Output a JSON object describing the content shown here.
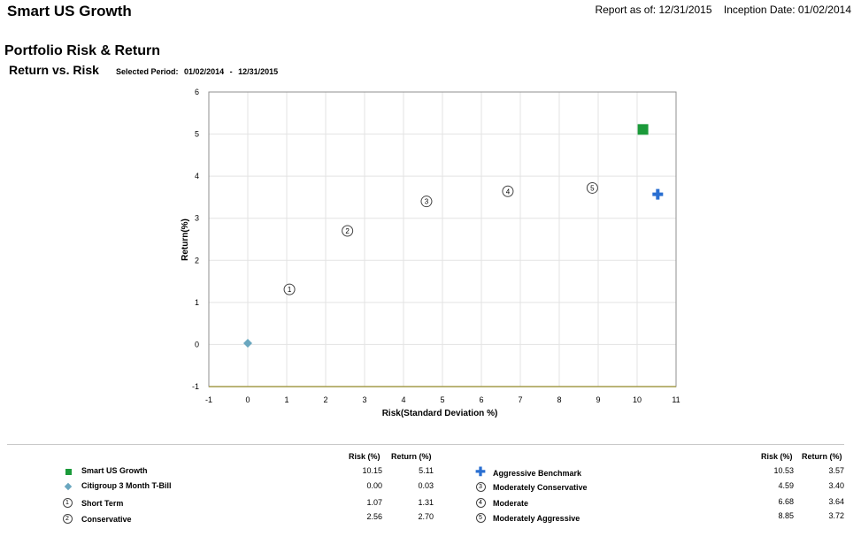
{
  "header": {
    "title": "Smart US Growth",
    "report_as_of": "Report as of: 12/31/2015",
    "inception_date": "Inception Date: 01/02/2014"
  },
  "section_title": "Portfolio Risk & Return",
  "chart_heading": "Return vs. Risk",
  "selected_period": {
    "label": "Selected Period:",
    "start": "01/02/2014",
    "separator": "-",
    "end": "12/31/2015"
  },
  "chart_data": {
    "type": "scatter",
    "xlabel": "Risk(Standard Deviation %)",
    "ylabel": "Return(%)",
    "xlim": [
      -1,
      11
    ],
    "ylim": [
      -1,
      6
    ],
    "xticks": [
      -1,
      0,
      1,
      2,
      3,
      4,
      5,
      6,
      7,
      8,
      9,
      10,
      11
    ],
    "yticks": [
      -1,
      0,
      1,
      2,
      3,
      4,
      5,
      6
    ],
    "grid": true,
    "series": [
      {
        "name": "Smart US Growth",
        "marker": "square",
        "color": "#1b9a3a",
        "x": 10.15,
        "y": 5.11
      },
      {
        "name": "Citigroup 3 Month T-Bill",
        "marker": "diamond",
        "color": "#6aa7bf",
        "x": 0.0,
        "y": 0.03
      },
      {
        "name": "Short Term",
        "marker": "circle-label",
        "label": "1",
        "color": "#444444",
        "x": 1.07,
        "y": 1.31
      },
      {
        "name": "Conservative",
        "marker": "circle-label",
        "label": "2",
        "color": "#444444",
        "x": 2.56,
        "y": 2.7
      },
      {
        "name": "Aggressive Benchmark",
        "marker": "plus",
        "color": "#2a6fd1",
        "x": 10.53,
        "y": 3.57
      },
      {
        "name": "Moderately Conservative",
        "marker": "circle-label",
        "label": "3",
        "color": "#444444",
        "x": 4.59,
        "y": 3.4
      },
      {
        "name": "Moderate",
        "marker": "circle-label",
        "label": "4",
        "color": "#444444",
        "x": 6.68,
        "y": 3.64
      },
      {
        "name": "Moderately Aggressive",
        "marker": "circle-label",
        "label": "5",
        "color": "#444444",
        "x": 8.85,
        "y": 3.72
      }
    ]
  },
  "legend_table": {
    "risk_header": "Risk (%)",
    "return_header": "Return (%)",
    "left": [
      {
        "name": "Smart US Growth",
        "marker": "square",
        "risk": "10.15",
        "return": "5.11"
      },
      {
        "name": "Citigroup 3 Month T-Bill",
        "marker": "diamond",
        "risk": "0.00",
        "return": "0.03"
      },
      {
        "name": "Short Term",
        "marker": "circle",
        "label": "1",
        "risk": "1.07",
        "return": "1.31"
      },
      {
        "name": "Conservative",
        "marker": "circle",
        "label": "2",
        "risk": "2.56",
        "return": "2.70"
      }
    ],
    "right": [
      {
        "name": "Aggressive Benchmark",
        "marker": "plus",
        "risk": "10.53",
        "return": "3.57"
      },
      {
        "name": "Moderately Conservative",
        "marker": "circle",
        "label": "3",
        "risk": "4.59",
        "return": "3.40"
      },
      {
        "name": "Moderate",
        "marker": "circle",
        "label": "4",
        "risk": "6.68",
        "return": "3.64"
      },
      {
        "name": "Moderately Aggressive",
        "marker": "circle",
        "label": "5",
        "risk": "8.85",
        "return": "3.72"
      }
    ]
  }
}
